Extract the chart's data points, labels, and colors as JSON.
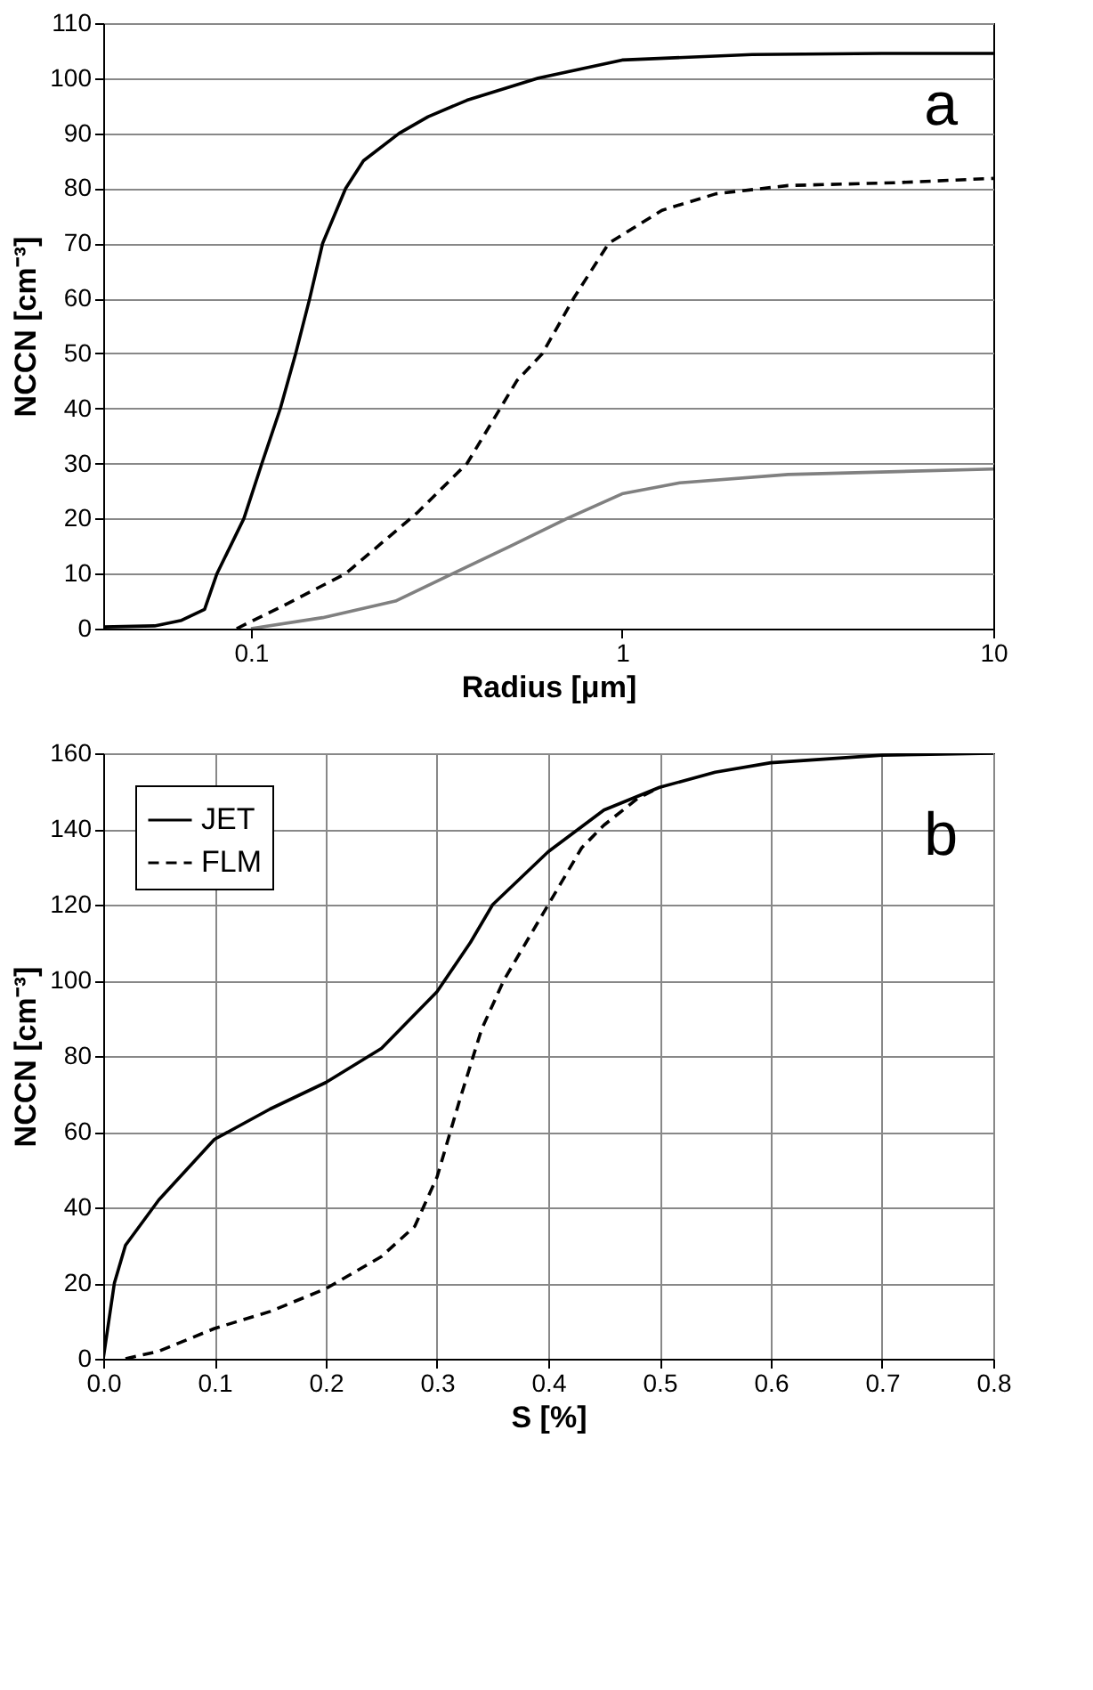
{
  "chart_data": [
    {
      "type": "line",
      "xlabel": "Radius [μm]",
      "ylabel": "NCCN [cm⁻³]",
      "annotations": [
        "a"
      ],
      "log": "x",
      "grid": "y",
      "legend": false,
      "xlim": [
        0.04,
        10
      ],
      "xticks": [
        0.1,
        1,
        10
      ],
      "ylim": [
        0,
        110
      ],
      "yticks": [
        0,
        10,
        20,
        30,
        40,
        50,
        60,
        70,
        80,
        90,
        100,
        110
      ],
      "series": [
        {
          "color": "#000000",
          "line_style": "solid",
          "x": [
            0.04,
            0.055,
            0.065,
            0.075,
            0.081,
            0.0957,
            0.107,
            0.12,
            0.132,
            0.144,
            0.156,
            0.18,
            0.201,
            0.251,
            0.3,
            0.382,
            0.594,
            1.0,
            2.24,
            5,
            10
          ],
          "values": [
            0.3,
            0.5,
            1.5,
            3.5,
            10,
            20,
            30,
            40,
            50,
            60,
            70,
            80,
            85,
            90,
            93,
            96,
            100,
            103.3,
            104.3,
            104.5,
            104.5
          ]
        },
        {
          "color": "#000000",
          "line_style": "dashed",
          "x": [
            0.0915,
            0.121,
            0.18,
            0.28,
            0.382,
            0.52,
            0.61,
            0.74,
            0.92,
            1.28,
            1.79,
            2.8,
            5.4,
            10
          ],
          "values": [
            0,
            4,
            10,
            21,
            30,
            45,
            50,
            60,
            70,
            76,
            79,
            80.5,
            81,
            81.8
          ]
        },
        {
          "color": "#808080",
          "line_style": "solid",
          "x": [
            0.1,
            0.156,
            0.245,
            0.35,
            0.5,
            0.71,
            1.0,
            1.43,
            2.8,
            10
          ],
          "values": [
            0,
            2,
            5,
            10,
            15,
            20,
            24.5,
            26.5,
            28,
            29
          ]
        }
      ]
    },
    {
      "type": "line",
      "xlabel": "S [%]",
      "ylabel": "NCCN [cm⁻³]",
      "annotations": [
        "b"
      ],
      "grid": true,
      "legend": "top left",
      "xlim": [
        0,
        0.8
      ],
      "xticks": [
        {
          "value": 0,
          "label": "0.0"
        },
        0.1,
        0.2,
        0.3,
        0.4,
        0.5,
        0.6,
        0.7,
        0.8
      ],
      "ylim": [
        0,
        160
      ],
      "yticks": [
        0,
        20,
        40,
        60,
        80,
        100,
        120,
        140,
        160
      ],
      "series": [
        {
          "name": "JET",
          "color": "#000000",
          "line_style": "solid",
          "x": [
            0,
            0.005,
            0.01,
            0.02,
            0.05,
            0.1,
            0.15,
            0.2,
            0.25,
            0.3,
            0.33,
            0.35,
            0.4,
            0.45,
            0.5,
            0.55,
            0.6,
            0.7,
            0.8
          ],
          "values": [
            0,
            10,
            20,
            30,
            42,
            58,
            66,
            73,
            82,
            97,
            110,
            120,
            134,
            145,
            151,
            155,
            157.5,
            159.5,
            160
          ]
        },
        {
          "name": "FLM",
          "color": "#000000",
          "line_style": "dashed",
          "x": [
            0.02,
            0.05,
            0.1,
            0.15,
            0.2,
            0.25,
            0.28,
            0.3,
            0.32,
            0.34,
            0.36,
            0.4,
            0.43,
            0.45,
            0.48,
            0.5
          ],
          "values": [
            0,
            2,
            8,
            12.5,
            18.5,
            27,
            35,
            48,
            68,
            87,
            100,
            120,
            135,
            141,
            148,
            151
          ]
        }
      ]
    }
  ]
}
